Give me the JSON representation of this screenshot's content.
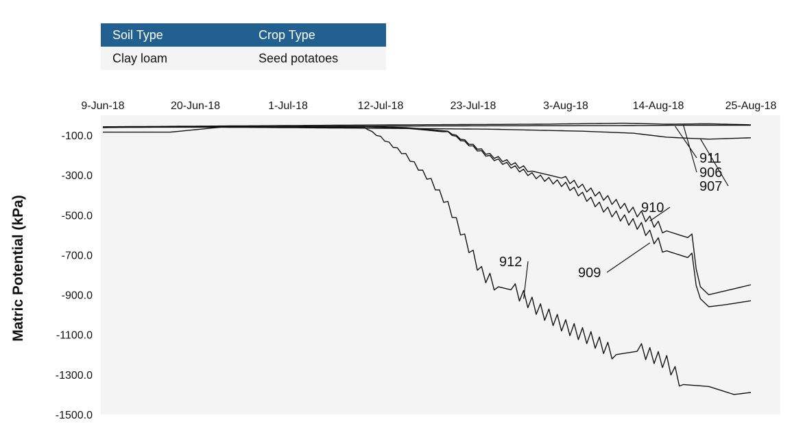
{
  "info_table": {
    "headers": [
      "Soil Type",
      "Crop Type"
    ],
    "rows": [
      [
        "Clay loam",
        "Seed potatoes"
      ]
    ],
    "header_color": "#22618f"
  },
  "chart_data": {
    "type": "line",
    "ylabel": "Matric Potential (kPa)",
    "xlabel": "",
    "x_tick_labels": [
      "9-Jun-18",
      "20-Jun-18",
      "1-Jul-18",
      "12-Jul-18",
      "23-Jul-18",
      "3-Aug-18",
      "14-Aug-18",
      "25-Aug-18"
    ],
    "x_tick_dates": [
      "2018-06-09",
      "2018-06-20",
      "2018-07-01",
      "2018-07-12",
      "2018-07-23",
      "2018-08-03",
      "2018-08-14",
      "2018-08-25"
    ],
    "xlim": [
      "2018-06-09",
      "2018-08-25"
    ],
    "y_tick_labels": [
      "-100.0",
      "-300.0",
      "-500.0",
      "-700.0",
      "-900.0",
      "-1100.0",
      "-1300.0",
      "-1500.0"
    ],
    "y_ticks": [
      -100,
      -300,
      -500,
      -700,
      -900,
      -1100,
      -1300,
      -1500
    ],
    "ylim": [
      -1500,
      -30
    ],
    "grid": false,
    "plot_background": "#f4f4f4",
    "series": [
      {
        "name": "911",
        "points": [
          [
            "2018-06-09",
            -58
          ],
          [
            "2018-06-30",
            -52
          ],
          [
            "2018-07-15",
            -48
          ],
          [
            "2018-07-31",
            -45
          ],
          [
            "2018-08-10",
            -40
          ],
          [
            "2018-08-15",
            -45
          ],
          [
            "2018-08-20",
            -43
          ],
          [
            "2018-08-25",
            -48
          ]
        ]
      },
      {
        "name": "906",
        "points": [
          [
            "2018-06-09",
            -62
          ],
          [
            "2018-06-20",
            -58
          ],
          [
            "2018-07-10",
            -55
          ],
          [
            "2018-07-25",
            -53
          ],
          [
            "2018-08-10",
            -52
          ],
          [
            "2018-08-18",
            -50
          ],
          [
            "2018-08-25",
            -50
          ]
        ]
      },
      {
        "name": "907",
        "points": [
          [
            "2018-06-09",
            -85
          ],
          [
            "2018-06-17",
            -85
          ],
          [
            "2018-06-23",
            -60
          ],
          [
            "2018-07-10",
            -65
          ],
          [
            "2018-07-25",
            -70
          ],
          [
            "2018-08-05",
            -80
          ],
          [
            "2018-08-11",
            -90
          ],
          [
            "2018-08-15",
            -110
          ],
          [
            "2018-08-20",
            -120
          ],
          [
            "2018-08-25",
            -113
          ]
        ]
      },
      {
        "name": "910",
        "points": [
          [
            "2018-06-09",
            -60
          ],
          [
            "2018-07-10",
            -57
          ],
          [
            "2018-07-15",
            -62
          ],
          [
            "2018-07-20",
            -80
          ],
          [
            "2018-07-25",
            -200
          ],
          [
            "2018-07-30",
            -280
          ],
          [
            "2018-08-03",
            -320
          ],
          [
            "2018-08-08",
            -420
          ],
          [
            "2018-08-12",
            -500
          ],
          [
            "2018-08-15",
            -580
          ],
          [
            "2018-08-18",
            -620
          ],
          [
            "2018-08-19",
            -860
          ],
          [
            "2018-08-20",
            -900
          ],
          [
            "2018-08-22",
            -880
          ],
          [
            "2018-08-25",
            -850
          ]
        ]
      },
      {
        "name": "909",
        "points": [
          [
            "2018-06-09",
            -60
          ],
          [
            "2018-07-10",
            -58
          ],
          [
            "2018-07-15",
            -65
          ],
          [
            "2018-07-20",
            -85
          ],
          [
            "2018-07-25",
            -210
          ],
          [
            "2018-07-30",
            -300
          ],
          [
            "2018-08-03",
            -350
          ],
          [
            "2018-08-08",
            -480
          ],
          [
            "2018-08-12",
            -560
          ],
          [
            "2018-08-15",
            -680
          ],
          [
            "2018-08-18",
            -720
          ],
          [
            "2018-08-19",
            -920
          ],
          [
            "2018-08-20",
            -960
          ],
          [
            "2018-08-22",
            -950
          ],
          [
            "2018-08-25",
            -930
          ]
        ]
      },
      {
        "name": "912",
        "points": [
          [
            "2018-06-09",
            -60
          ],
          [
            "2018-07-10",
            -60
          ],
          [
            "2018-07-12",
            -110
          ],
          [
            "2018-07-15",
            -200
          ],
          [
            "2018-07-18",
            -330
          ],
          [
            "2018-07-20",
            -450
          ],
          [
            "2018-07-22",
            -620
          ],
          [
            "2018-07-24",
            -790
          ],
          [
            "2018-07-26",
            -860
          ],
          [
            "2018-07-28",
            -880
          ],
          [
            "2018-07-31",
            -980
          ],
          [
            "2018-08-03",
            -1060
          ],
          [
            "2018-08-06",
            -1120
          ],
          [
            "2018-08-09",
            -1200
          ],
          [
            "2018-08-12",
            -1180
          ],
          [
            "2018-08-15",
            -1240
          ],
          [
            "2018-08-17",
            -1350
          ],
          [
            "2018-08-20",
            -1360
          ],
          [
            "2018-08-23",
            -1400
          ],
          [
            "2018-08-25",
            -1390
          ]
        ]
      }
    ]
  }
}
